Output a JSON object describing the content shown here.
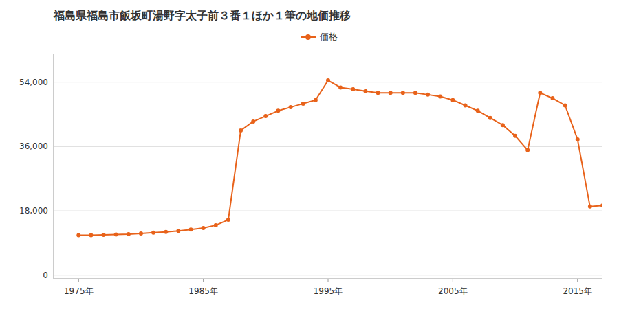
{
  "chart_data": {
    "type": "line",
    "title": "福島県福島市飯坂町湯野字太子前３番１ほか１筆の地価推移",
    "x": [
      1975,
      1976,
      1977,
      1978,
      1979,
      1980,
      1981,
      1982,
      1983,
      1984,
      1985,
      1986,
      1987,
      1988,
      1989,
      1990,
      1991,
      1992,
      1993,
      1994,
      1995,
      1996,
      1997,
      1998,
      1999,
      2000,
      2001,
      2002,
      2003,
      2004,
      2005,
      2006,
      2007,
      2008,
      2009,
      2010,
      2011,
      2012,
      2013,
      2014,
      2015,
      2016,
      2017
    ],
    "series": [
      {
        "name": "価格",
        "color": "#e8621a",
        "marker": "circle",
        "values": [
          11200,
          11200,
          11300,
          11400,
          11500,
          11700,
          11900,
          12100,
          12400,
          12800,
          13200,
          14000,
          15500,
          40500,
          43000,
          44500,
          46000,
          47000,
          48000,
          49000,
          54500,
          52500,
          52000,
          51500,
          51000,
          51000,
          51000,
          51000,
          50500,
          50000,
          49000,
          47500,
          46000,
          44000,
          42000,
          39000,
          35000,
          51000,
          49500,
          47500,
          38000,
          19200,
          19500
        ]
      }
    ],
    "xlim": [
      1973,
      2017
    ],
    "xticks": [
      {
        "value": 1975,
        "label": "1975年"
      },
      {
        "value": 1985,
        "label": "1985年"
      },
      {
        "value": 1995,
        "label": "1995年"
      },
      {
        "value": 2005,
        "label": "2005年"
      },
      {
        "value": 2015,
        "label": "2015年"
      }
    ],
    "ylim": [
      -1000,
      62000
    ],
    "yticks": [
      0,
      {
        "value": 18000,
        "label": "18,000"
      },
      {
        "value": 36000,
        "label": "36,000"
      },
      {
        "value": 54000,
        "label": "54,000"
      }
    ],
    "grid": true,
    "legend": "top"
  }
}
